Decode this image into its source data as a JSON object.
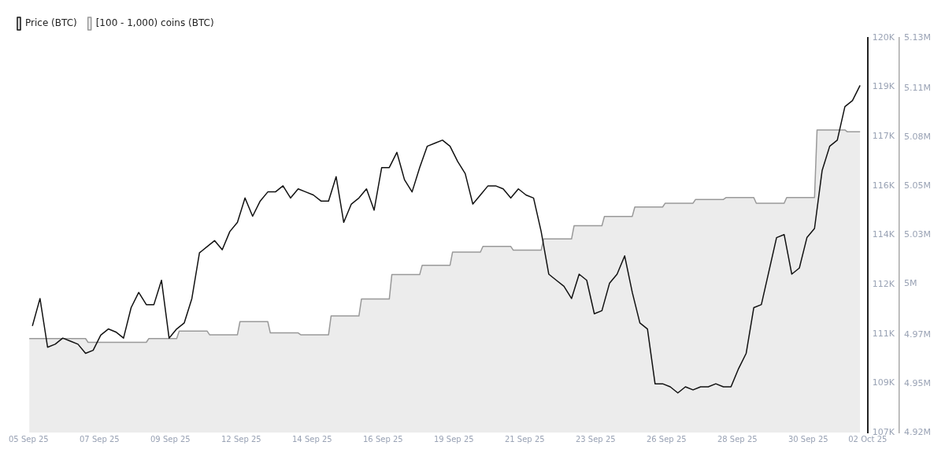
{
  "chart_data": {
    "type": "line",
    "xlim": [
      "--09-04T09:00",
      "--10-02T00:00"
    ],
    "xticks": [
      {
        "value": "--09-04T09:00",
        "label": "05 Sep 25"
      },
      {
        "value": "--09-06T17:00",
        "label": "07 Sep 25"
      },
      {
        "value": "--09-09T01:00",
        "label": "09 Sep 25"
      },
      {
        "value": "--09-11T09:00",
        "label": "12 Sep 25"
      },
      {
        "value": "--09-13T17:00",
        "label": "14 Sep 25"
      },
      {
        "value": "--09-16T01:00",
        "label": "16 Sep 25"
      },
      {
        "value": "--09-18T09:00",
        "label": "19 Sep 25"
      },
      {
        "value": "--09-20T17:00",
        "label": "21 Sep 25"
      },
      {
        "value": "--09-23T01:00",
        "label": "23 Sep 25"
      },
      {
        "value": "--09-25T09:00",
        "label": "26 Sep 25"
      },
      {
        "value": "--09-27T17:00",
        "label": "28 Sep 25"
      },
      {
        "value": "--09-30T01:00",
        "label": "30 Sep 25"
      },
      {
        "value": "--10-02T00:00",
        "label": "02 Oct 25"
      }
    ],
    "ylim": [
      107.4,
      120.36
    ],
    "yticks": [
      {
        "value": 107.4,
        "label": "107K"
      },
      {
        "value": 109.02,
        "label": "109K"
      },
      {
        "value": 110.64,
        "label": "111K"
      },
      {
        "value": 112.26,
        "label": "112K"
      },
      {
        "value": 113.88,
        "label": "114K"
      },
      {
        "value": 115.5,
        "label": "116K"
      },
      {
        "value": 117.12,
        "label": "117K"
      },
      {
        "value": 118.74,
        "label": "119K"
      },
      {
        "value": 120.36,
        "label": "120K"
      }
    ],
    "y2lim": [
      4.922,
      5.132
    ],
    "y2ticks": [
      {
        "value": 4.922,
        "label": "4.92M"
      },
      {
        "value": 4.948,
        "label": "4.95M"
      },
      {
        "value": 4.974,
        "label": "4.97M"
      },
      {
        "value": 5.001,
        "label": "5M"
      },
      {
        "value": 5.027,
        "label": "5.03M"
      },
      {
        "value": 5.053,
        "label": "5.05M"
      },
      {
        "value": 5.079,
        "label": "5.08M"
      },
      {
        "value": 5.105,
        "label": "5.11M"
      },
      {
        "value": 5.132,
        "label": "5.13M"
      }
    ],
    "legend": "top left",
    "grid": false,
    "series": [
      {
        "name": "Price (BTC)",
        "color": "#111111",
        "x": [
          "--09-04T12:00",
          "--09-04T18:00",
          "--09-05T00:00",
          "--09-05T06:00",
          "--09-05T12:00",
          "--09-05T18:00",
          "--09-06T00:00",
          "--09-06T06:00",
          "--09-06T12:00",
          "--09-06T18:00",
          "--09-07T00:00",
          "--09-07T06:00",
          "--09-07T12:00",
          "--09-07T18:00",
          "--09-08T00:00",
          "--09-08T06:00",
          "--09-08T12:00",
          "--09-08T18:00",
          "--09-09T00:00",
          "--09-09T06:00",
          "--09-09T12:00",
          "--09-09T18:00",
          "--09-10T00:00",
          "--09-10T06:00",
          "--09-10T12:00",
          "--09-10T18:00",
          "--09-11T00:00",
          "--09-11T06:00",
          "--09-11T12:00",
          "--09-11T18:00",
          "--09-12T00:00",
          "--09-12T06:00",
          "--09-12T12:00",
          "--09-12T18:00",
          "--09-13T00:00",
          "--09-13T06:00",
          "--09-13T12:00",
          "--09-13T18:00",
          "--09-14T00:00",
          "--09-14T06:00",
          "--09-14T12:00",
          "--09-14T18:00",
          "--09-15T00:00",
          "--09-15T06:00",
          "--09-15T12:00",
          "--09-15T18:00",
          "--09-16T00:00",
          "--09-16T06:00",
          "--09-16T12:00",
          "--09-16T18:00",
          "--09-17T00:00",
          "--09-17T06:00",
          "--09-17T12:00",
          "--09-17T18:00",
          "--09-18T00:00",
          "--09-18T06:00",
          "--09-18T12:00",
          "--09-18T18:00",
          "--09-19T00:00",
          "--09-19T06:00",
          "--09-19T12:00",
          "--09-19T18:00",
          "--09-20T00:00",
          "--09-20T06:00",
          "--09-20T12:00",
          "--09-20T18:00",
          "--09-21T00:00",
          "--09-21T06:00",
          "--09-21T12:00",
          "--09-21T18:00",
          "--09-22T00:00",
          "--09-22T06:00",
          "--09-22T12:00",
          "--09-22T18:00",
          "--09-23T00:00",
          "--09-23T06:00",
          "--09-23T12:00",
          "--09-23T18:00",
          "--09-24T00:00",
          "--09-24T06:00",
          "--09-24T12:00",
          "--09-24T18:00",
          "--09-25T00:00",
          "--09-25T06:00",
          "--09-25T12:00",
          "--09-25T18:00",
          "--09-26T00:00",
          "--09-26T06:00",
          "--09-26T12:00",
          "--09-26T18:00",
          "--09-27T00:00",
          "--09-27T06:00",
          "--09-27T12:00",
          "--09-27T18:00",
          "--09-28T00:00",
          "--09-28T06:00",
          "--09-28T12:00",
          "--09-28T18:00",
          "--09-29T00:00",
          "--09-29T06:00",
          "--09-29T12:00",
          "--09-29T18:00",
          "--09-30T00:00",
          "--09-30T06:00",
          "--09-30T12:00",
          "--09-30T18:00",
          "--10-01T00:00",
          "--10-01T06:00",
          "--10-01T12:00",
          "--10-01T18:00"
        ],
        "values": [
          110.9,
          111.8,
          110.2,
          110.3,
          110.5,
          110.4,
          110.3,
          110.0,
          110.1,
          110.6,
          110.8,
          110.7,
          110.5,
          111.5,
          112.0,
          111.6,
          111.6,
          112.4,
          110.5,
          110.8,
          111.0,
          111.8,
          113.3,
          113.5,
          113.7,
          113.4,
          114.0,
          114.3,
          115.1,
          114.5,
          115.0,
          115.3,
          115.3,
          115.5,
          115.1,
          115.4,
          115.3,
          115.2,
          115.0,
          115.0,
          115.8,
          114.3,
          114.9,
          115.1,
          115.4,
          114.7,
          116.1,
          116.1,
          116.6,
          115.7,
          115.3,
          116.1,
          116.8,
          116.9,
          117.0,
          116.8,
          116.3,
          115.9,
          114.9,
          115.2,
          115.5,
          115.5,
          115.4,
          115.1,
          115.4,
          115.2,
          115.1,
          114.0,
          112.6,
          112.4,
          112.2,
          111.8,
          112.6,
          112.4,
          111.3,
          111.4,
          112.3,
          112.6,
          113.2,
          112.0,
          111.0,
          110.8,
          109.0,
          109.0,
          108.9,
          108.7,
          108.9,
          108.8,
          108.9,
          108.9,
          109.0,
          108.9,
          108.9,
          109.5,
          110.0,
          111.5,
          111.6,
          112.7,
          113.8,
          113.9,
          112.6,
          112.8,
          113.8,
          114.1,
          116.0,
          116.8,
          117.0,
          118.1,
          118.3,
          118.8
        ]
      },
      {
        "name": "[100 - 1,000) coins (BTC)",
        "type": "area",
        "axis": "y2",
        "color": "#999999",
        "x": [
          "--09-04T09:30",
          "--09-06T06:00",
          "--09-06T08:00",
          "--09-08T06:00",
          "--09-08T08:00",
          "--09-09T06:00",
          "--09-09T08:00",
          "--09-10T06:00",
          "--09-10T08:00",
          "--09-11T06:00",
          "--09-11T08:00",
          "--09-12T06:00",
          "--09-12T08:00",
          "--09-13T06:00",
          "--09-13T08:00",
          "--09-14T06:00",
          "--09-14T08:00",
          "--09-15T06:00",
          "--09-15T08:00",
          "--09-16T06:00",
          "--09-16T08:00",
          "--09-17T06:00",
          "--09-17T08:00",
          "--09-18T06:00",
          "--09-18T08:00",
          "--09-19T06:00",
          "--09-19T08:00",
          "--09-20T06:00",
          "--09-20T08:00",
          "--09-21T06:00",
          "--09-21T08:00",
          "--09-22T06:00",
          "--09-22T08:00",
          "--09-23T06:00",
          "--09-23T08:00",
          "--09-24T06:00",
          "--09-24T08:00",
          "--09-25T06:00",
          "--09-25T08:00",
          "--09-26T06:00",
          "--09-26T08:00",
          "--09-27T06:00",
          "--09-27T08:00",
          "--09-28T06:00",
          "--09-28T08:00",
          "--09-29T06:00",
          "--09-29T08:00",
          "--09-30T06:00",
          "--09-30T08:00",
          "--10-01T06:00",
          "--10-01T08:00",
          "--10-01T18:00"
        ],
        "values": [
          4.972,
          4.972,
          4.97,
          4.97,
          4.972,
          4.972,
          4.976,
          4.976,
          4.974,
          4.974,
          4.981,
          4.981,
          4.975,
          4.975,
          4.974,
          4.974,
          4.984,
          4.984,
          4.993,
          4.993,
          5.006,
          5.006,
          5.011,
          5.011,
          5.018,
          5.018,
          5.021,
          5.021,
          5.019,
          5.019,
          5.025,
          5.025,
          5.032,
          5.032,
          5.037,
          5.037,
          5.042,
          5.042,
          5.044,
          5.044,
          5.046,
          5.046,
          5.047,
          5.047,
          5.044,
          5.044,
          5.047,
          5.047,
          5.083,
          5.083,
          5.082,
          5.082
        ]
      }
    ]
  }
}
